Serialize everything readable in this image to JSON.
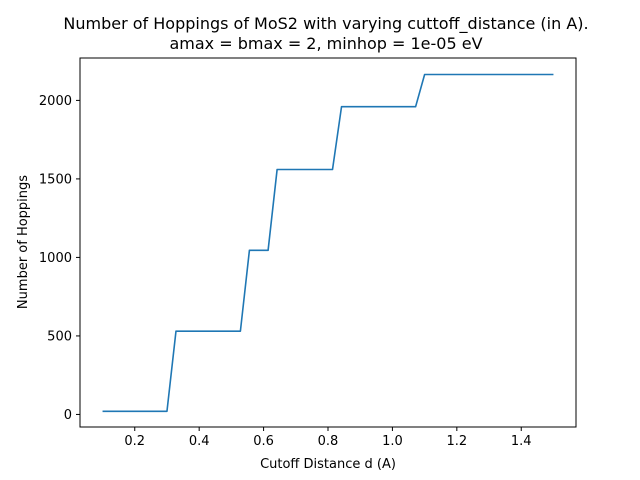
{
  "chart_data": {
    "type": "line",
    "title": "Number of Hoppings of MoS2 with varying cuttoff_distance (in A).",
    "subtitle": "amax = bmax = 2, minhop = 1e-05 eV",
    "xlabel": "Cutoff Distance d (A)",
    "ylabel": "Number of Hoppings",
    "xlim": [
      0.03,
      1.57
    ],
    "ylim": [
      -80,
      2270
    ],
    "xticks": [
      0.2,
      0.4,
      0.6,
      0.8,
      1.0,
      1.2,
      1.4
    ],
    "xtick_labels": [
      "0.2",
      "0.4",
      "0.6",
      "0.8",
      "1.0",
      "1.2",
      "1.4"
    ],
    "yticks": [
      0,
      500,
      1000,
      1500,
      2000
    ],
    "ytick_labels": [
      "0",
      "500",
      "1000",
      "1500",
      "2000"
    ],
    "grid": false,
    "series": [
      {
        "color": "#1f77b4",
        "x": [
          0.1,
          0.3,
          0.328,
          0.528,
          0.556,
          0.614,
          0.642,
          0.814,
          0.842,
          1.072,
          1.1,
          1.5
        ],
        "y": [
          20,
          20,
          530,
          530,
          1045,
          1045,
          1560,
          1560,
          1960,
          1960,
          2165,
          2165
        ]
      }
    ]
  }
}
